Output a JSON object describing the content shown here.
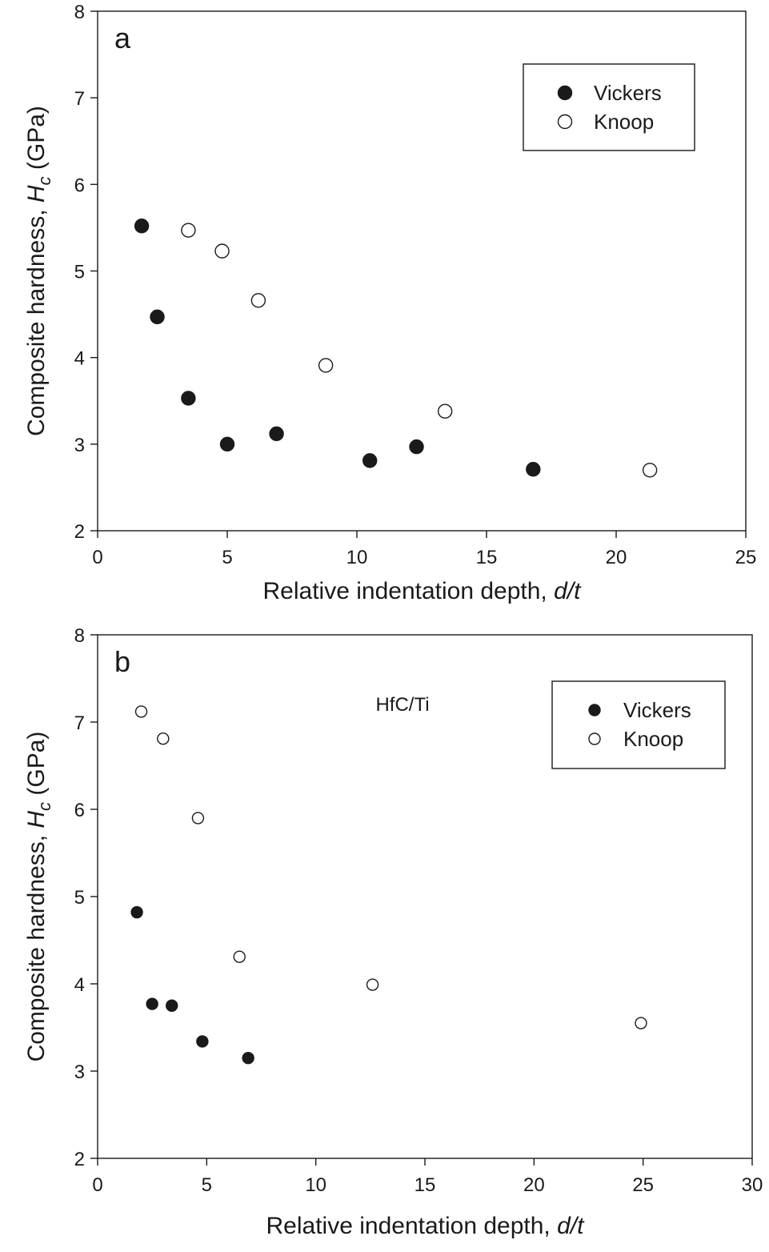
{
  "chart_data": [
    {
      "type": "scatter",
      "panel_label": "a",
      "annotation": "",
      "xlabel": "Relative indentation depth, ",
      "xlabel_italic": "d/t",
      "ylabel": "Composite hardness, ",
      "ylabel_italic_main": "H",
      "ylabel_italic_sub": "c",
      "ylabel_suffix": " (GPa)",
      "xlim": [
        0,
        25
      ],
      "ylim": [
        2,
        8
      ],
      "xticks": [
        0,
        5,
        10,
        15,
        20,
        25
      ],
      "yticks": [
        2,
        3,
        4,
        5,
        6,
        7,
        8
      ],
      "grid": false,
      "legend_position": "top-right",
      "series": [
        {
          "name": "Vickers",
          "marker": "filled-circle",
          "color": "#1a1a1a",
          "points": [
            [
              1.7,
              5.52
            ],
            [
              2.3,
              4.47
            ],
            [
              3.5,
              3.53
            ],
            [
              5.0,
              3.0
            ],
            [
              6.9,
              3.12
            ],
            [
              10.5,
              2.81
            ],
            [
              12.3,
              2.97
            ],
            [
              16.8,
              2.71
            ]
          ]
        },
        {
          "name": "Knoop",
          "marker": "open-circle",
          "color": "#1a1a1a",
          "points": [
            [
              3.5,
              5.47
            ],
            [
              4.8,
              5.23
            ],
            [
              6.2,
              4.66
            ],
            [
              8.8,
              3.91
            ],
            [
              13.4,
              3.38
            ],
            [
              21.3,
              2.7
            ]
          ]
        }
      ]
    },
    {
      "type": "scatter",
      "panel_label": "b",
      "annotation": "HfC/Ti",
      "xlabel": "Relative indentation depth, ",
      "xlabel_italic": "d/t",
      "ylabel": "Composite hardness, ",
      "ylabel_italic_main": "H",
      "ylabel_italic_sub": "c",
      "ylabel_suffix": " (GPa)",
      "xlim": [
        0,
        30
      ],
      "ylim": [
        2,
        8
      ],
      "xticks": [
        0,
        5,
        10,
        15,
        20,
        25,
        30
      ],
      "yticks": [
        2,
        3,
        4,
        5,
        6,
        7,
        8
      ],
      "grid": false,
      "legend_position": "top-right",
      "series": [
        {
          "name": "Vickers",
          "marker": "filled-circle",
          "color": "#1a1a1a",
          "points": [
            [
              1.8,
              4.82
            ],
            [
              2.5,
              3.77
            ],
            [
              3.4,
              3.75
            ],
            [
              4.8,
              3.34
            ],
            [
              6.9,
              3.15
            ]
          ]
        },
        {
          "name": "Knoop",
          "marker": "open-circle",
          "color": "#1a1a1a",
          "points": [
            [
              2.0,
              7.12
            ],
            [
              3.0,
              6.81
            ],
            [
              4.6,
              5.9
            ],
            [
              6.5,
              4.31
            ],
            [
              12.6,
              3.99
            ],
            [
              24.9,
              3.55
            ]
          ]
        }
      ]
    }
  ]
}
